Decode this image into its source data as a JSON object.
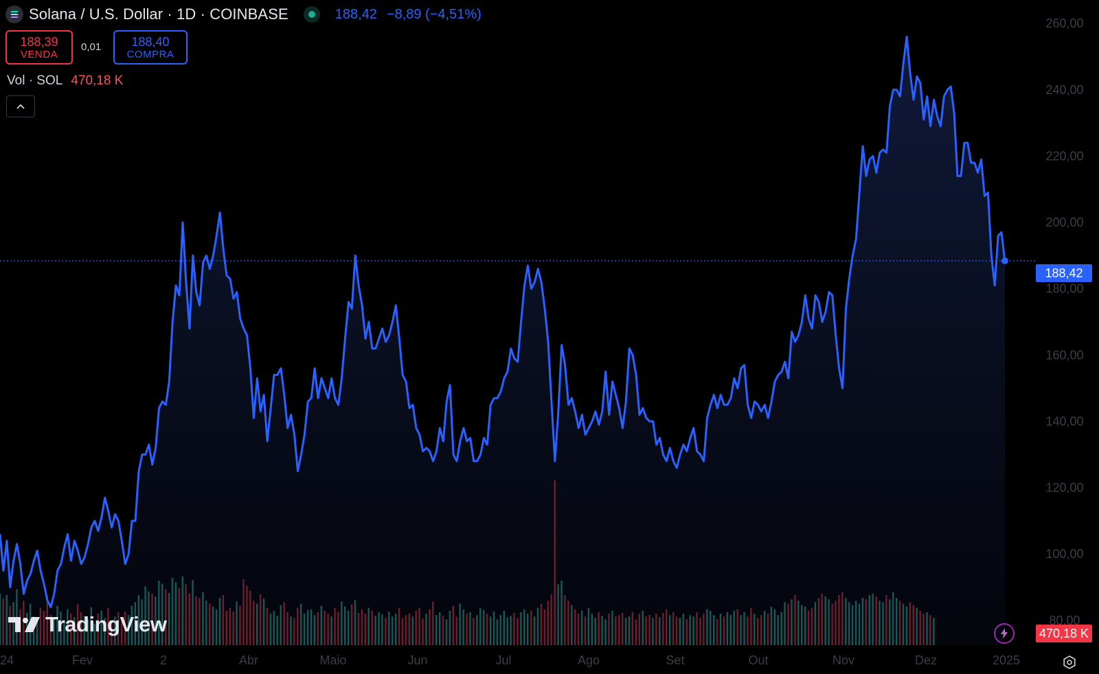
{
  "header": {
    "symbol_title": "Solana / U.S. Dollar · 1D · COINBASE",
    "last_price": "188,42",
    "change": "−8,89 (−4,51%)",
    "symbol_icon": "solana-logo-icon",
    "status_icon": "market-open-dot-icon"
  },
  "trade": {
    "sell_price": "188,39",
    "sell_label": "VENDA",
    "spread": "0,01",
    "buy_price": "188,40",
    "buy_label": "COMPRA"
  },
  "volume": {
    "label": "Vol · SOL",
    "value": "470,18 K"
  },
  "price_tags": {
    "last": "188,42",
    "volume": "470,18 K"
  },
  "branding": {
    "logo_text": "TradingView"
  },
  "colors": {
    "line": "#2962ff",
    "down": "#f23645",
    "up": "#22ab94",
    "axis_text": "#3b3e45"
  },
  "chart_data": {
    "type": "area",
    "series": [
      {
        "values": [
          106,
          95,
          104,
          90,
          98,
          103,
          97,
          88,
          92,
          94,
          98,
          101,
          95,
          91,
          86,
          84,
          88,
          95,
          97,
          102,
          106,
          98,
          104,
          101,
          97,
          99,
          103,
          108,
          110,
          107,
          111,
          117,
          113,
          108,
          112,
          110,
          104,
          97,
          100,
          110,
          110,
          125,
          130,
          130,
          133,
          127,
          132,
          144,
          146,
          145,
          152,
          170,
          181,
          178,
          200,
          182,
          168,
          190,
          179,
          175,
          188,
          190,
          186,
          190,
          196,
          203,
          192,
          184,
          183,
          177,
          179,
          171,
          168,
          166,
          156,
          141,
          153,
          143,
          148,
          134,
          144,
          154,
          154,
          156,
          148,
          138,
          142,
          136,
          125,
          130,
          136,
          146,
          147,
          156,
          147,
          153,
          150,
          147,
          153,
          147,
          145,
          153,
          165,
          176,
          174,
          190,
          181,
          175,
          165,
          170,
          162,
          162,
          165,
          168,
          164,
          166,
          170,
          175,
          165,
          154,
          152,
          144,
          145,
          138,
          136,
          131,
          132,
          131,
          128,
          131,
          138,
          134,
          146,
          151,
          130,
          128,
          134,
          138,
          134,
          135,
          128,
          128,
          130,
          135,
          133,
          145,
          147,
          147,
          149,
          153,
          155,
          162,
          159,
          158,
          170,
          181,
          187,
          180,
          182,
          186,
          182,
          174,
          164,
          146,
          128,
          143,
          163,
          157,
          145,
          147,
          143,
          138,
          142,
          136,
          138,
          140,
          143,
          139,
          143,
          155,
          142,
          152,
          148,
          144,
          138,
          146,
          162,
          160,
          154,
          142,
          144,
          141,
          140,
          140,
          133,
          135,
          130,
          128,
          132,
          128,
          126,
          130,
          133,
          131,
          135,
          138,
          131,
          130,
          128,
          141,
          145,
          148,
          144,
          148,
          145,
          145,
          147,
          153,
          150,
          156,
          157,
          145,
          141,
          146,
          145,
          143,
          145,
          141,
          146,
          152,
          154,
          155,
          158,
          153,
          167,
          164,
          166,
          170,
          178,
          171,
          168,
          178,
          176,
          170,
          173,
          179,
          178,
          166,
          156,
          150,
          174,
          183,
          190,
          195,
          209,
          223,
          214,
          219,
          220,
          215,
          221,
          222,
          221,
          235,
          240,
          240,
          238,
          248,
          256,
          245,
          237,
          244,
          242,
          231,
          238,
          229,
          237,
          232,
          229,
          238,
          240,
          241,
          233,
          214,
          214,
          224,
          224,
          218,
          218,
          215,
          219,
          208,
          209,
          190,
          181,
          196,
          197,
          188
        ]
      }
    ],
    "ylim": [
      75,
      265
    ],
    "yticks": [
      "260,00",
      "240,00",
      "220,00",
      "200,00",
      "180,00",
      "160,00",
      "140,00",
      "120,00",
      "100,00",
      "80,00"
    ],
    "x_tick_labels": [
      "24",
      "Fev",
      "2",
      "Abr",
      "Maio",
      "Jun",
      "Jul",
      "Ago",
      "Set",
      "Out",
      "Nov",
      "Dez",
      "2025"
    ],
    "volume": [
      72,
      65,
      70,
      55,
      60,
      78,
      50,
      62,
      45,
      58,
      40,
      35,
      52,
      48,
      60,
      42,
      38,
      55,
      47,
      33,
      50,
      44,
      39,
      57,
      46,
      41,
      36,
      53,
      30,
      44,
      48,
      38,
      52,
      35,
      40,
      46,
      33,
      47,
      42,
      55,
      60,
      70,
      64,
      82,
      75,
      72,
      68,
      90,
      86,
      78,
      73,
      94,
      88,
      80,
      96,
      85,
      72,
      91,
      68,
      66,
      74,
      62,
      58,
      54,
      50,
      66,
      70,
      48,
      52,
      47,
      61,
      55,
      92,
      83,
      76,
      62,
      58,
      71,
      65,
      52,
      44,
      48,
      41,
      56,
      60,
      46,
      40,
      38,
      52,
      58,
      44,
      49,
      50,
      42,
      46,
      55,
      48,
      44,
      40,
      52,
      47,
      61,
      54,
      48,
      57,
      63,
      45,
      50,
      44,
      52,
      48,
      41,
      46,
      43,
      38,
      47,
      40,
      44,
      52,
      38,
      42,
      44,
      40,
      48,
      52,
      37,
      44,
      50,
      61,
      42,
      46,
      41,
      36,
      48,
      55,
      40,
      58,
      50,
      44,
      46,
      38,
      42,
      52,
      49,
      44,
      40,
      47,
      36,
      42,
      48,
      39,
      41,
      45,
      38,
      46,
      50,
      44,
      48,
      40,
      52,
      58,
      50,
      62,
      71,
      230,
      85,
      90,
      70,
      62,
      56,
      50,
      44,
      48,
      40,
      52,
      44,
      38,
      46,
      41,
      36,
      44,
      48,
      40,
      42,
      45,
      38,
      40,
      46,
      36,
      44,
      48,
      40,
      42,
      38,
      44,
      39,
      45,
      50,
      42,
      46,
      40,
      38,
      44,
      36,
      42,
      40,
      46,
      38,
      44,
      50,
      48,
      42,
      36,
      44,
      40,
      46,
      42,
      48,
      50,
      42,
      46,
      40,
      52,
      44,
      38,
      42,
      48,
      44,
      54,
      50,
      42,
      46,
      60,
      58,
      64,
      70,
      62,
      56,
      54,
      48,
      52,
      60,
      66,
      72,
      68,
      64,
      58,
      62,
      70,
      74,
      66,
      60,
      56,
      62,
      58,
      66,
      64,
      70,
      72,
      68,
      62,
      60,
      70,
      64,
      74,
      66,
      62,
      58,
      54,
      60,
      56,
      52,
      48,
      44,
      46,
      42,
      38
    ],
    "volume_colors_note": "",
    "last_value": 188.42
  }
}
